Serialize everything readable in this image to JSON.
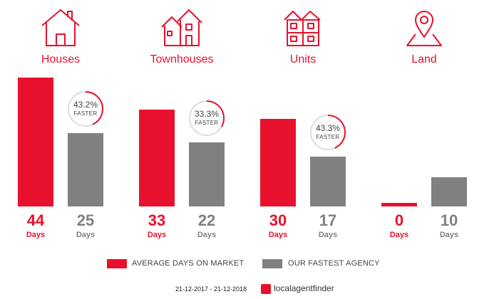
{
  "chart_data": {
    "type": "bar",
    "categories": [
      "Houses",
      "Townhouses",
      "Units",
      "Land"
    ],
    "icons": [
      "house-icon",
      "townhouse-icon",
      "units-icon",
      "land-icon"
    ],
    "series": [
      {
        "name": "AVERAGE DAYS ON MARKET",
        "color": "#e8112d",
        "values": [
          44,
          33,
          30,
          0
        ]
      },
      {
        "name": "OUR FASTEST AGENCY",
        "color": "#808080",
        "values": [
          25,
          22,
          17,
          10
        ]
      }
    ],
    "value_unit": "Days",
    "badges": [
      {
        "percent": "43.2%",
        "label": "FASTER",
        "fraction": 0.432
      },
      {
        "percent": "33.3%",
        "label": "FASTER",
        "fraction": 0.333
      },
      {
        "percent": "43.3%",
        "label": "FASTER",
        "fraction": 0.433
      },
      null
    ],
    "ylim": [
      0,
      44
    ],
    "grid": false,
    "legend": "bottom"
  },
  "footer": {
    "date_range": "21-12-2017 - 21-12-2018",
    "brand": "localagentfinder"
  }
}
